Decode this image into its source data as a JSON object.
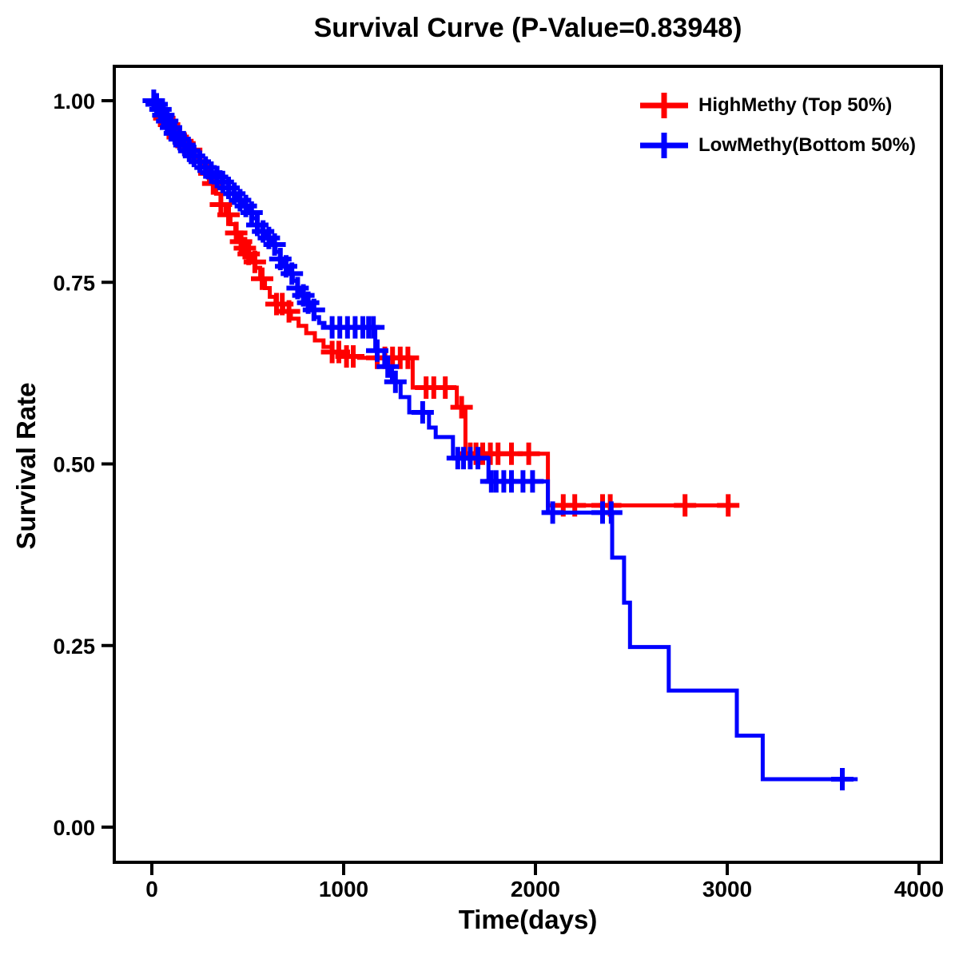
{
  "figure": {
    "background": "#FFFFFF",
    "frame_color": "#000000",
    "text_color": "#000000"
  },
  "chart_data": {
    "type": "line",
    "subtype": "kaplan-meier-survival-step",
    "title": "Survival Curve (P-Value=0.83948)",
    "p_value": "0.83948",
    "xlabel": "Time(days)",
    "ylabel": "Survival Rate",
    "xlim": [
      0,
      4000
    ],
    "ylim": [
      0,
      1
    ],
    "grid": false,
    "legend_position": "top-right",
    "x_ticks": [
      {
        "v": 0,
        "label": "0"
      },
      {
        "v": 1000,
        "label": "1000"
      },
      {
        "v": 2000,
        "label": "2000"
      },
      {
        "v": 3000,
        "label": "3000"
      },
      {
        "v": 4000,
        "label": "4000"
      }
    ],
    "y_ticks": [
      {
        "v": 0.0,
        "label": "0.00"
      },
      {
        "v": 0.25,
        "label": "0.25"
      },
      {
        "v": 0.5,
        "label": "0.50"
      },
      {
        "v": 0.75,
        "label": "0.75"
      },
      {
        "v": 1.0,
        "label": "1.00"
      }
    ],
    "series": [
      {
        "name": "HighMethy (Top 50%)",
        "color": "#FF0000",
        "end_time": 3060,
        "steps": [
          [
            0,
            1.0
          ],
          [
            20,
            0.993
          ],
          [
            40,
            0.985
          ],
          [
            60,
            0.976
          ],
          [
            85,
            0.967
          ],
          [
            105,
            0.958
          ],
          [
            130,
            0.95
          ],
          [
            160,
            0.941
          ],
          [
            195,
            0.932
          ],
          [
            225,
            0.922
          ],
          [
            255,
            0.912
          ],
          [
            285,
            0.9
          ],
          [
            310,
            0.886
          ],
          [
            335,
            0.872
          ],
          [
            360,
            0.857
          ],
          [
            385,
            0.843
          ],
          [
            410,
            0.83
          ],
          [
            435,
            0.818
          ],
          [
            455,
            0.806
          ],
          [
            475,
            0.797
          ],
          [
            495,
            0.789
          ],
          [
            515,
            0.778
          ],
          [
            540,
            0.77
          ],
          [
            565,
            0.755
          ],
          [
            590,
            0.742
          ],
          [
            615,
            0.73
          ],
          [
            645,
            0.72
          ],
          [
            685,
            0.71
          ],
          [
            725,
            0.7
          ],
          [
            765,
            0.69
          ],
          [
            805,
            0.68
          ],
          [
            850,
            0.67
          ],
          [
            895,
            0.661
          ],
          [
            940,
            0.654
          ],
          [
            990,
            0.648
          ],
          [
            1080,
            0.646
          ],
          [
            1360,
            0.605
          ],
          [
            1590,
            0.578
          ],
          [
            1635,
            0.514
          ],
          [
            2065,
            0.443
          ]
        ],
        "censor_times": [
          65,
          90,
          135,
          170,
          205,
          300,
          320,
          360,
          400,
          440,
          465,
          485,
          505,
          537,
          575,
          650,
          680,
          715,
          940,
          975,
          1015,
          1050,
          1175,
          1215,
          1255,
          1295,
          1335,
          1430,
          1470,
          1530,
          1615,
          1660,
          1690,
          1725,
          1765,
          1805,
          1875,
          1965,
          2145,
          2205,
          2350,
          2390,
          2780,
          3005
        ]
      },
      {
        "name": "LowMethy(Bottom 50%)",
        "color": "#0000FF",
        "end_time": 3680,
        "steps": [
          [
            0,
            1.0
          ],
          [
            15,
            0.995
          ],
          [
            35,
            0.988
          ],
          [
            55,
            0.98
          ],
          [
            75,
            0.972
          ],
          [
            95,
            0.963
          ],
          [
            115,
            0.955
          ],
          [
            140,
            0.947
          ],
          [
            165,
            0.939
          ],
          [
            190,
            0.931
          ],
          [
            215,
            0.924
          ],
          [
            245,
            0.916
          ],
          [
            275,
            0.908
          ],
          [
            305,
            0.901
          ],
          [
            335,
            0.895
          ],
          [
            365,
            0.888
          ],
          [
            395,
            0.88
          ],
          [
            425,
            0.872
          ],
          [
            450,
            0.863
          ],
          [
            475,
            0.855
          ],
          [
            500,
            0.846
          ],
          [
            525,
            0.838
          ],
          [
            550,
            0.829
          ],
          [
            575,
            0.82
          ],
          [
            600,
            0.811
          ],
          [
            622,
            0.802
          ],
          [
            645,
            0.792
          ],
          [
            668,
            0.782
          ],
          [
            690,
            0.772
          ],
          [
            712,
            0.762
          ],
          [
            735,
            0.752
          ],
          [
            758,
            0.742
          ],
          [
            780,
            0.732
          ],
          [
            802,
            0.722
          ],
          [
            825,
            0.712
          ],
          [
            848,
            0.702
          ],
          [
            872,
            0.694
          ],
          [
            900,
            0.688
          ],
          [
            1165,
            0.656
          ],
          [
            1212,
            0.634
          ],
          [
            1252,
            0.613
          ],
          [
            1297,
            0.592
          ],
          [
            1342,
            0.571
          ],
          [
            1445,
            0.55
          ],
          [
            1480,
            0.537
          ],
          [
            1570,
            0.508
          ],
          [
            1755,
            0.476
          ],
          [
            2065,
            0.433
          ],
          [
            2400,
            0.371
          ],
          [
            2462,
            0.309
          ],
          [
            2493,
            0.248
          ],
          [
            2695,
            0.188
          ],
          [
            3050,
            0.126
          ],
          [
            3185,
            0.066
          ]
        ],
        "censor_times": [
          10,
          25,
          45,
          60,
          80,
          100,
          120,
          145,
          170,
          195,
          220,
          250,
          280,
          310,
          340,
          370,
          400,
          430,
          460,
          490,
          520,
          550,
          580,
          610,
          640,
          670,
          700,
          730,
          760,
          790,
          815,
          845,
          940,
          980,
          1020,
          1060,
          1100,
          1130,
          1155,
          1175,
          1230,
          1270,
          1412,
          1595,
          1625,
          1660,
          1700,
          1770,
          1795,
          1835,
          1875,
          1935,
          1985,
          2090,
          2350,
          2395,
          3600
        ]
      }
    ]
  }
}
